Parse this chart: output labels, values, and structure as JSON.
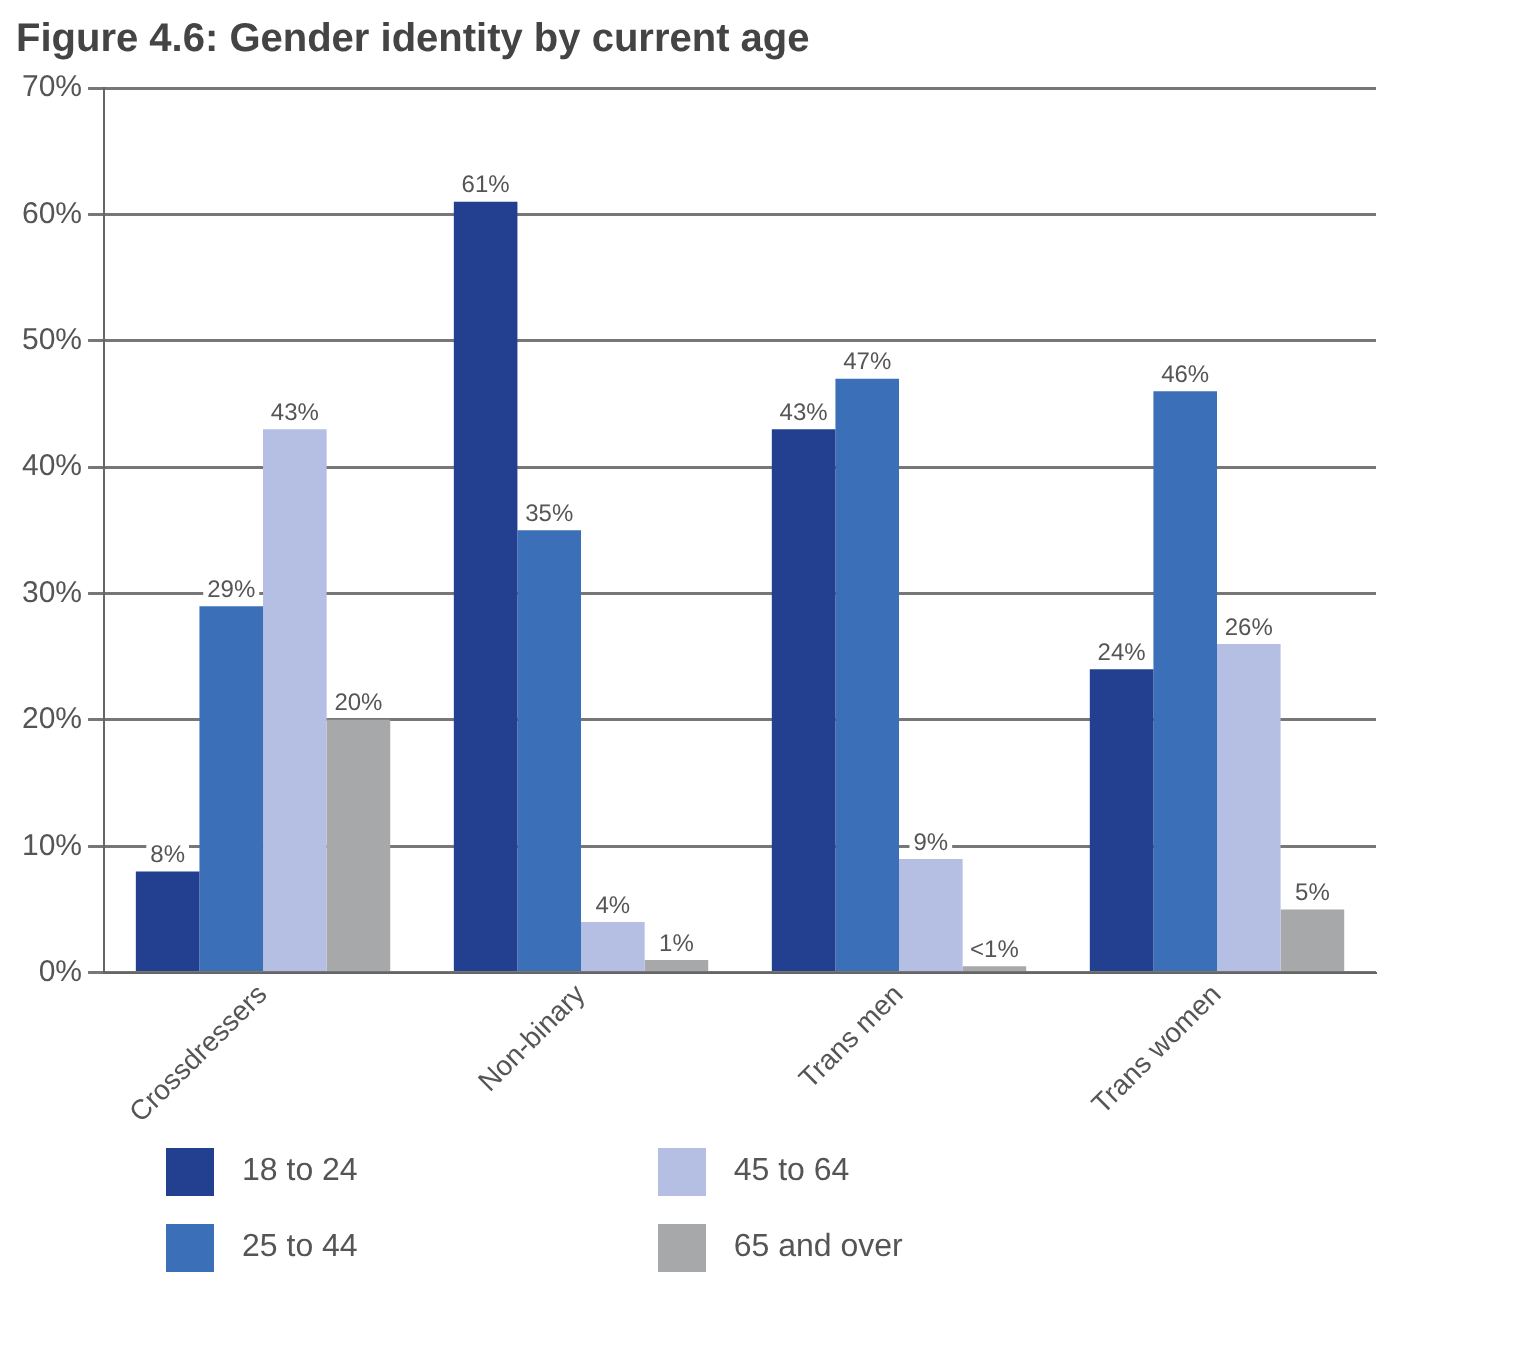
{
  "chart_data": {
    "type": "bar",
    "title": "Figure 4.6: Gender identity by current age",
    "categories": [
      "Crossdressers",
      "Non-binary",
      "Trans men",
      "Trans women"
    ],
    "series": [
      {
        "name": "18 to 24",
        "color": "#233f8f",
        "values": [
          8,
          61,
          43,
          24
        ],
        "value_labels": [
          "8%",
          "61%",
          "43%",
          "24%"
        ]
      },
      {
        "name": "25 to 44",
        "color": "#3b70b9",
        "values": [
          29,
          35,
          47,
          46
        ],
        "value_labels": [
          "29%",
          "35%",
          "47%",
          "46%"
        ]
      },
      {
        "name": "45 to 64",
        "color": "#b4bfe3",
        "values": [
          43,
          4,
          9,
          26
        ],
        "value_labels": [
          "43%",
          "4%",
          "9%",
          "26%"
        ]
      },
      {
        "name": "65 and over",
        "color": "#a7a8aa",
        "values": [
          20,
          1,
          0.5,
          5
        ],
        "value_labels": [
          "20%",
          "1%",
          "<1%",
          "5%"
        ]
      }
    ],
    "ylim": [
      0,
      70
    ],
    "yticks": [
      {
        "value": 0,
        "label": "0%"
      },
      {
        "value": 10,
        "label": "10%"
      },
      {
        "value": 20,
        "label": "20%"
      },
      {
        "value": 30,
        "label": "30%"
      },
      {
        "value": 40,
        "label": "40%"
      },
      {
        "value": 50,
        "label": "50%"
      },
      {
        "value": 60,
        "label": "60%"
      },
      {
        "value": 70,
        "label": "70%"
      }
    ],
    "grid": "y",
    "legend": "bottom"
  }
}
